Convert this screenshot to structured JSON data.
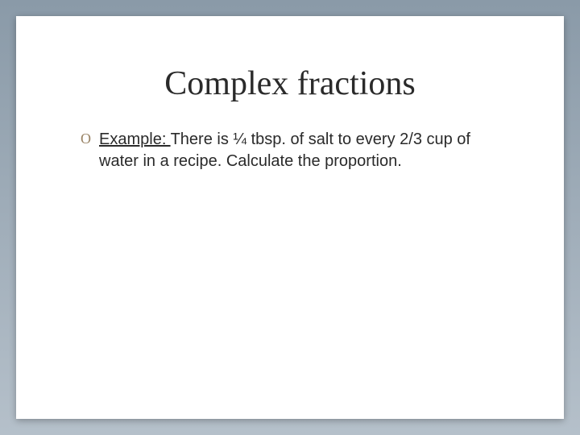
{
  "slide": {
    "background_gradient_top": "#8a9aa8",
    "background_gradient_bottom": "#b5c0ca",
    "card_background": "#ffffff",
    "title": {
      "text": "Complex fractions",
      "font_family": "Georgia, serif",
      "font_size_pt": 32,
      "color": "#2a2a2a"
    },
    "bullet": {
      "marker": "O",
      "marker_color": "#9a8466",
      "marker_font_family": "Brush Script MT, cursive",
      "label_underlined": "Example: ",
      "body_text": "There is ¼ tbsp. of salt to every 2/3 cup of water in a recipe. Calculate the proportion.",
      "font_family": "Arial, sans-serif",
      "font_size_pt": 15,
      "color": "#2a2a2a"
    }
  }
}
